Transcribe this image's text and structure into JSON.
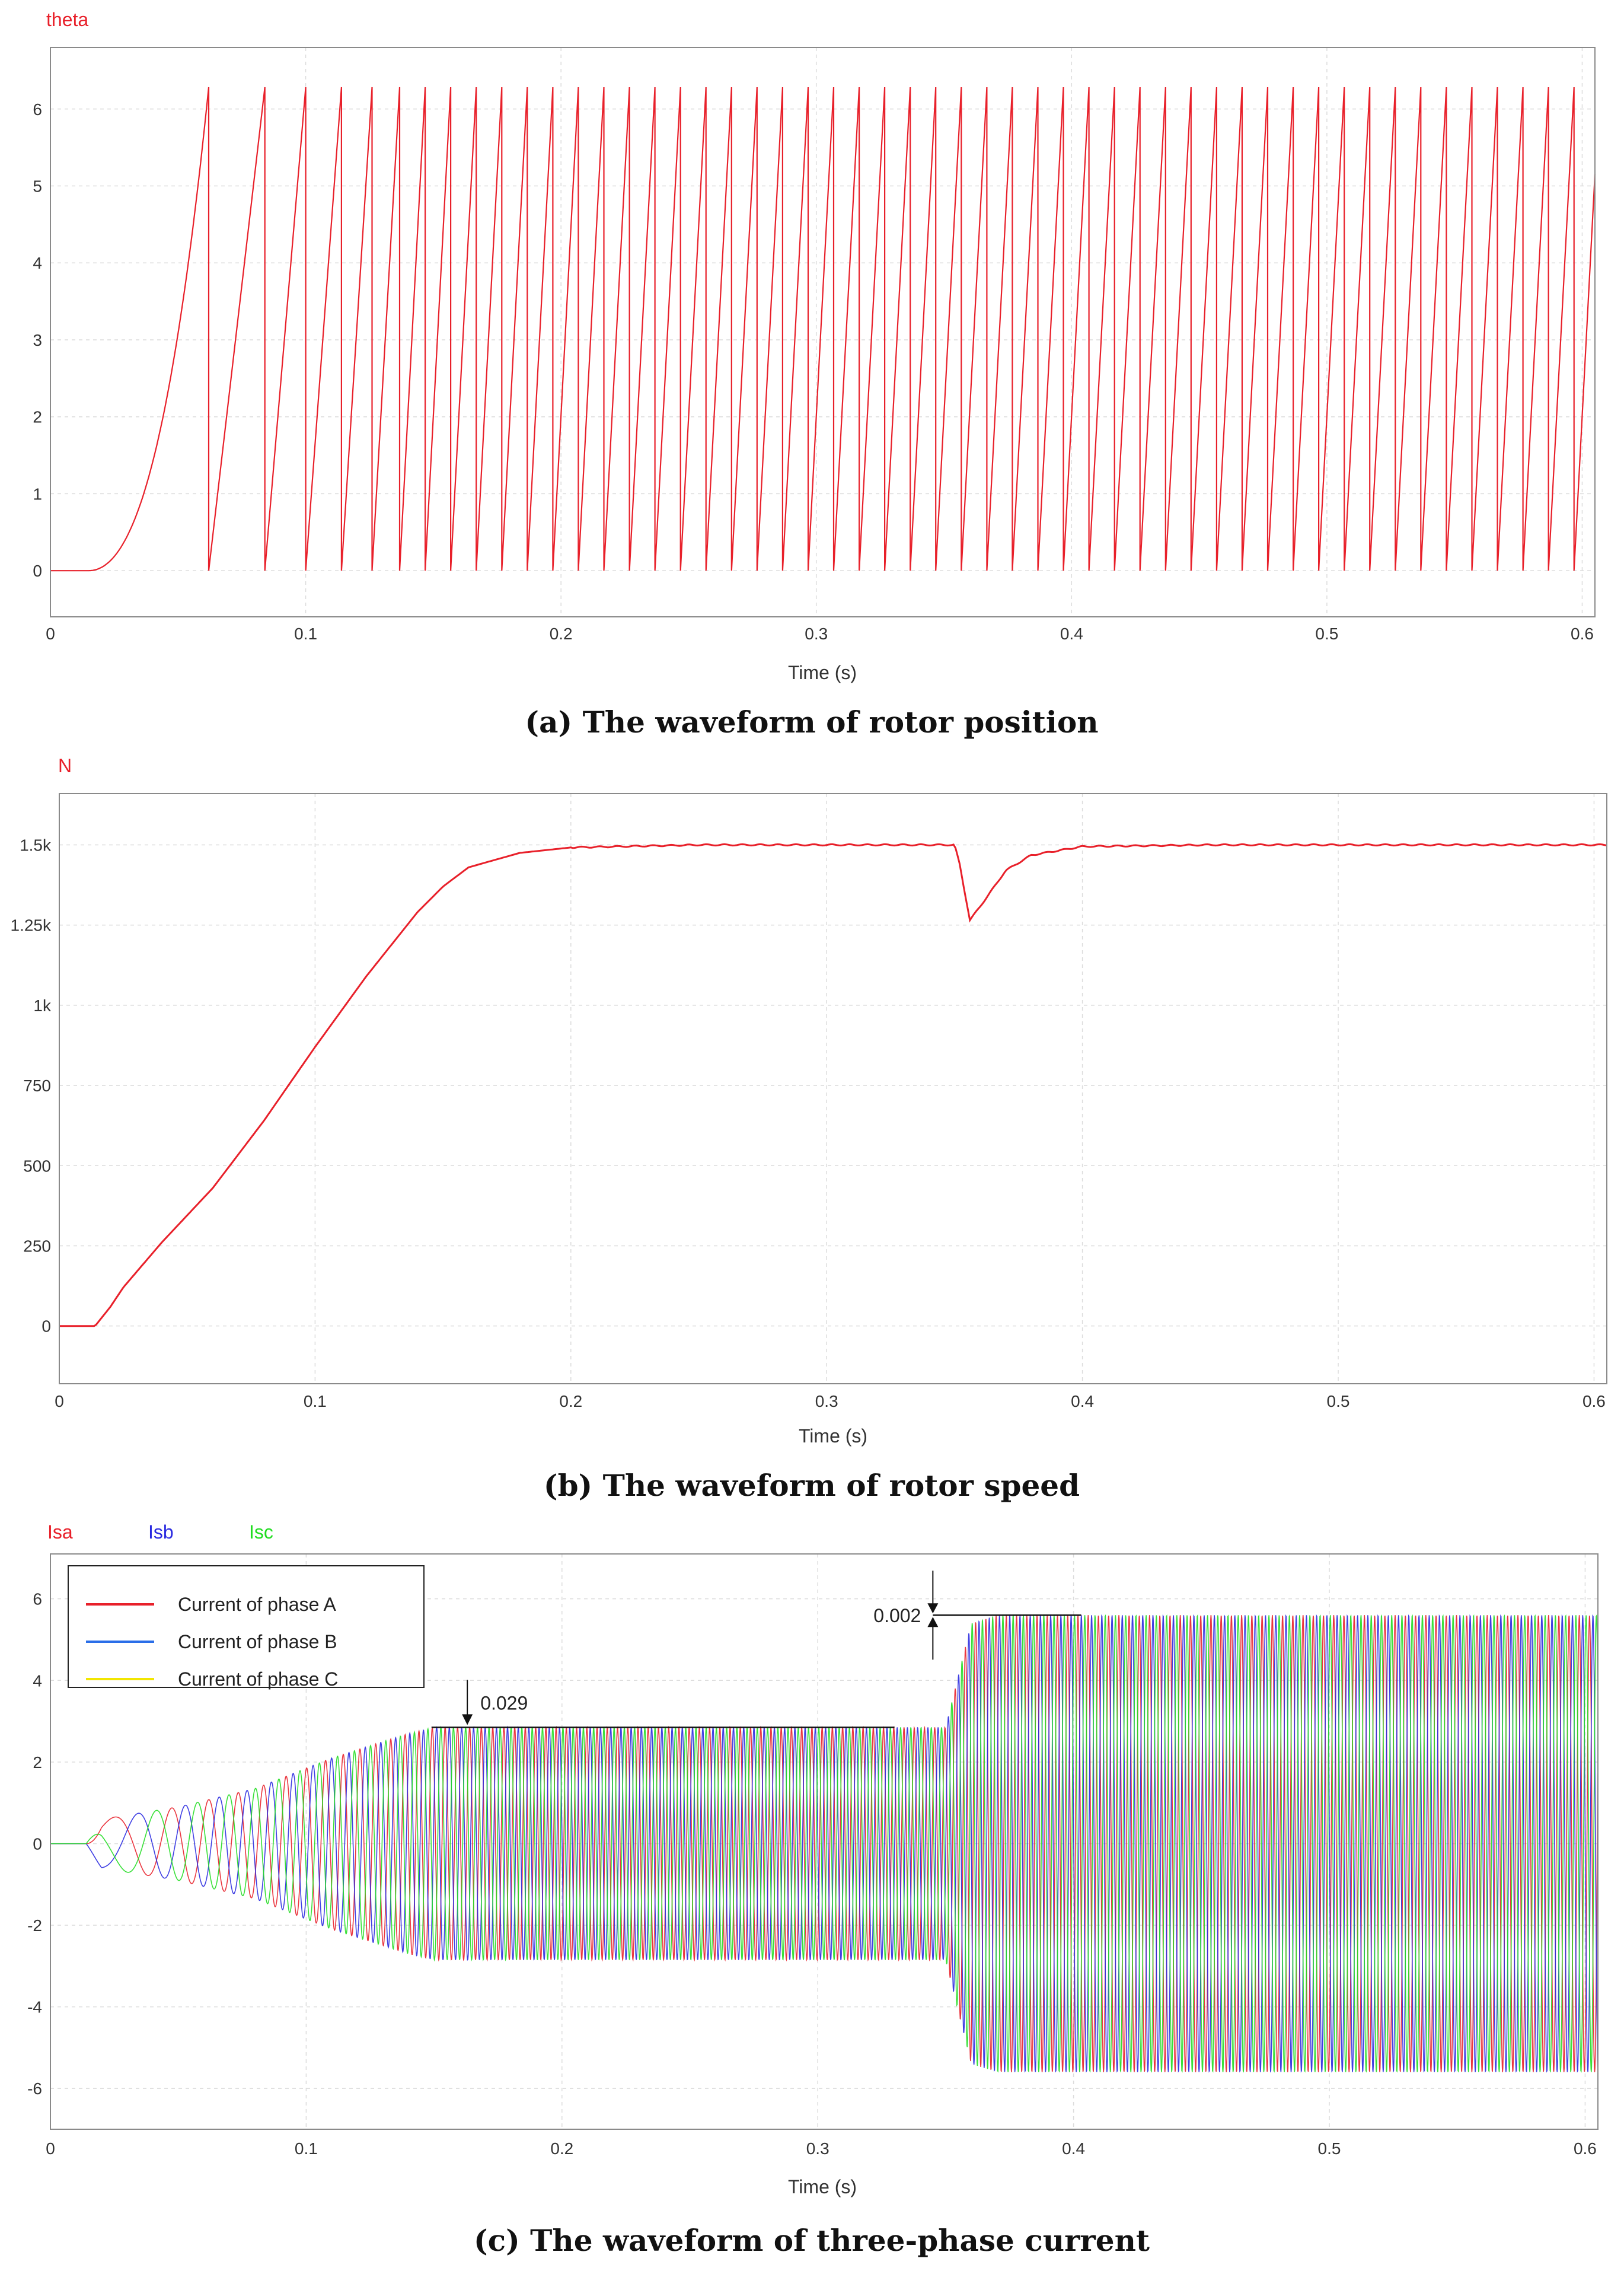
{
  "chart_data": [
    {
      "id": "a",
      "type": "line",
      "variable_label": "theta",
      "caption_letter": "a",
      "caption_text": " The waveform of rotor position",
      "xlabel": "Time (s)",
      "ylabel": "",
      "xlim": [
        0,
        0.605
      ],
      "ylim": [
        -0.6,
        6.8
      ],
      "x_ticks": [
        0,
        0.1,
        0.2,
        0.3,
        0.4,
        0.5,
        0.6
      ],
      "y_ticks": [
        0,
        1,
        2,
        3,
        4,
        5,
        6
      ],
      "y_tick_labels": [
        "0",
        "1",
        "2",
        "3",
        "4",
        "5",
        "6"
      ],
      "grid": true,
      "series": [
        {
          "name": "theta",
          "color": "#e8202a",
          "description": "sawtooth rotor angle wrapping 0 to 6.28 rad",
          "start_time": 0.015,
          "max": 6.2832,
          "wrap_times": [
            0.062,
            0.084,
            0.1,
            0.114,
            0.126
          ]
        }
      ]
    },
    {
      "id": "b",
      "type": "line",
      "variable_label": "N",
      "caption_letter": "b",
      "caption_text": " The waveform of rotor speed",
      "xlabel": "Time (s)",
      "ylabel": "",
      "xlim": [
        0,
        0.605
      ],
      "ylim": [
        -180,
        1660
      ],
      "x_ticks": [
        0,
        0.1,
        0.2,
        0.3,
        0.4,
        0.5,
        0.6
      ],
      "y_ticks": [
        0,
        250,
        500,
        750,
        1000,
        1250,
        1500
      ],
      "y_tick_labels": [
        "0",
        "250",
        "500",
        "750",
        "1k",
        "1.25k",
        "1.5k"
      ],
      "grid": true,
      "series": [
        {
          "name": "N",
          "color": "#e8202a",
          "points": [
            [
              0,
              0
            ],
            [
              0.014,
              0
            ],
            [
              0.02,
              60
            ],
            [
              0.025,
              120
            ],
            [
              0.04,
              260
            ],
            [
              0.06,
              430
            ],
            [
              0.08,
              640
            ],
            [
              0.1,
              870
            ],
            [
              0.12,
              1090
            ],
            [
              0.14,
              1290
            ],
            [
              0.15,
              1370
            ],
            [
              0.16,
              1430
            ],
            [
              0.18,
              1475
            ],
            [
              0.2,
              1492
            ],
            [
              0.25,
              1500
            ],
            [
              0.35,
              1500
            ],
            [
              0.352,
              1440
            ],
            [
              0.356,
              1265
            ],
            [
              0.362,
              1330
            ],
            [
              0.37,
              1420
            ],
            [
              0.38,
              1468
            ],
            [
              0.4,
              1495
            ],
            [
              0.45,
              1500
            ],
            [
              0.605,
              1500
            ]
          ]
        }
      ]
    },
    {
      "id": "c",
      "type": "line",
      "caption_letter": "c",
      "caption_text": " The waveform of three-phase current",
      "xlabel": "Time (s)",
      "ylabel": "",
      "xlim": [
        0,
        0.605
      ],
      "ylim": [
        -7,
        7.1
      ],
      "x_ticks": [
        0,
        0.1,
        0.2,
        0.3,
        0.4,
        0.5,
        0.6
      ],
      "y_ticks": [
        -6,
        -4,
        -2,
        0,
        2,
        4,
        6
      ],
      "y_tick_labels": [
        "-6",
        "-4",
        "-2",
        "0",
        "2",
        "4",
        "6"
      ],
      "grid": true,
      "variable_labels": [
        {
          "text": "Isa",
          "color": "#e8202a"
        },
        {
          "text": "Isb",
          "color": "#2a2ae0"
        },
        {
          "text": "Isc",
          "color": "#22dd22"
        }
      ],
      "legend": {
        "position": "top-left",
        "entries": [
          {
            "label": "Current of phase A",
            "color": "#e8202a"
          },
          {
            "label": "Current of phase B",
            "color": "#2a6ee8"
          },
          {
            "label": "Current of phase C",
            "color": "#f2e600"
          }
        ]
      },
      "series": [
        {
          "name": "Isa",
          "color": "#e8202a",
          "phase_deg": 0
        },
        {
          "name": "Isb",
          "color": "#2a2ae0",
          "phase_deg": -120
        },
        {
          "name": "Isc",
          "color": "#22dd22",
          "phase_deg": 120
        }
      ],
      "amplitude_profile": [
        [
          0,
          0
        ],
        [
          0.014,
          0
        ],
        [
          0.02,
          0.6
        ],
        [
          0.05,
          0.9
        ],
        [
          0.08,
          1.35
        ],
        [
          0.11,
          2.1
        ],
        [
          0.14,
          2.7
        ],
        [
          0.15,
          2.85
        ],
        [
          0.35,
          2.85
        ],
        [
          0.36,
          5.4
        ],
        [
          0.37,
          5.6
        ],
        [
          0.605,
          5.6
        ]
      ],
      "steady_frequency_hz": 250,
      "annotations": [
        {
          "text": "0.029",
          "x": 0.163,
          "y": 2.85
        },
        {
          "text": "0.002",
          "x": 0.345,
          "y": 5.6
        }
      ]
    }
  ]
}
